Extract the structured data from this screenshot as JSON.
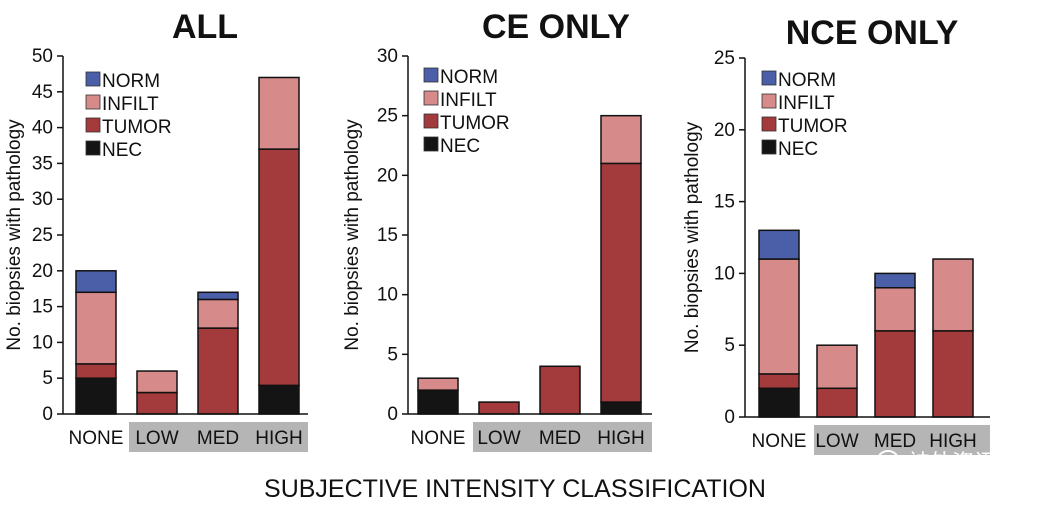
{
  "footer": "SUBJECTIVE INTENSITY CLASSIFICATION",
  "watermark": "神外资讯",
  "colors": {
    "NORM": "#4a5fa8",
    "INFILT": "#d68a8a",
    "TUMOR": "#a33a3c",
    "NEC": "#141414",
    "highlight": "#b5b5b5"
  },
  "chart_data": [
    {
      "type": "bar",
      "stacked": true,
      "title": "ALL",
      "ylabel": "No. biopsies with pathology",
      "xlabel": "",
      "ylim": [
        0,
        50
      ],
      "yticks": [
        0,
        5,
        10,
        15,
        20,
        25,
        30,
        35,
        40,
        45,
        50
      ],
      "categories": [
        "NONE",
        "LOW",
        "MED",
        "HIGH"
      ],
      "highlighted_categories": [
        "LOW",
        "MED",
        "HIGH"
      ],
      "legend": [
        "NORM",
        "INFILT",
        "TUMOR",
        "NEC"
      ],
      "legend_position": "top-left",
      "series": [
        {
          "name": "NEC",
          "values": [
            5,
            0,
            0,
            4
          ]
        },
        {
          "name": "TUMOR",
          "values": [
            2,
            3,
            12,
            33
          ]
        },
        {
          "name": "INFILT",
          "values": [
            10,
            3,
            4,
            10
          ]
        },
        {
          "name": "NORM",
          "values": [
            3,
            0,
            1,
            0
          ]
        }
      ]
    },
    {
      "type": "bar",
      "stacked": true,
      "title": "CE ONLY",
      "ylabel": "No. biopsies with pathology",
      "xlabel": "",
      "ylim": [
        0,
        30
      ],
      "yticks": [
        0,
        5,
        10,
        15,
        20,
        25,
        30
      ],
      "categories": [
        "NONE",
        "LOW",
        "MED",
        "HIGH"
      ],
      "highlighted_categories": [
        "LOW",
        "MED",
        "HIGH"
      ],
      "legend": [
        "NORM",
        "INFILT",
        "TUMOR",
        "NEC"
      ],
      "legend_position": "top-left",
      "series": [
        {
          "name": "NEC",
          "values": [
            2,
            0,
            0,
            1
          ]
        },
        {
          "name": "TUMOR",
          "values": [
            0,
            1,
            4,
            20
          ]
        },
        {
          "name": "INFILT",
          "values": [
            1,
            0,
            0,
            4
          ]
        },
        {
          "name": "NORM",
          "values": [
            0,
            0,
            0,
            0
          ]
        }
      ]
    },
    {
      "type": "bar",
      "stacked": true,
      "title": "NCE ONLY",
      "ylabel": "No. biopsies with pathology",
      "xlabel": "",
      "ylim": [
        0,
        25
      ],
      "yticks": [
        0,
        5,
        10,
        15,
        20,
        25
      ],
      "categories": [
        "NONE",
        "LOW",
        "MED",
        "HIGH"
      ],
      "highlighted_categories": [
        "LOW",
        "MED",
        "HIGH"
      ],
      "legend": [
        "NORM",
        "INFILT",
        "TUMOR",
        "NEC"
      ],
      "legend_position": "top-left",
      "series": [
        {
          "name": "NEC",
          "values": [
            2,
            0,
            0,
            0
          ]
        },
        {
          "name": "TUMOR",
          "values": [
            1,
            2,
            6,
            6
          ]
        },
        {
          "name": "INFILT",
          "values": [
            8,
            3,
            3,
            5
          ]
        },
        {
          "name": "NORM",
          "values": [
            2,
            0,
            1,
            0
          ]
        }
      ]
    }
  ]
}
